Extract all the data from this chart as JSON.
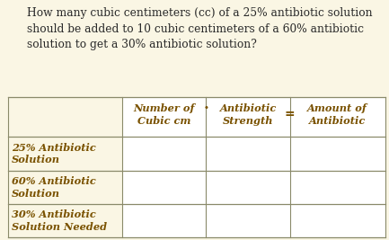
{
  "background_color": "#faf6e4",
  "question_text": "How many cubic centimeters (cc) of a 25% antibiotic solution\nshould be added to 10 cubic centimeters of a 60% antibiotic\nsolution to get a 30% antibiotic solution?",
  "question_fontsize": 8.8,
  "question_color": "#2a2a2a",
  "table_header": [
    "Number of\nCubic cm",
    "Antibiotic\nStrength",
    "Amount of\nAntibiotic"
  ],
  "row_labels": [
    "25% Antibiotic\nSolution",
    "60% Antibiotic\nSolution",
    "30% Antibiotic\nSolution Needed"
  ],
  "text_color": "#7a5200",
  "line_color": "#8a8a6a",
  "white_box_color": "#ffffff",
  "dot_char": "·",
  "eq_char": "="
}
